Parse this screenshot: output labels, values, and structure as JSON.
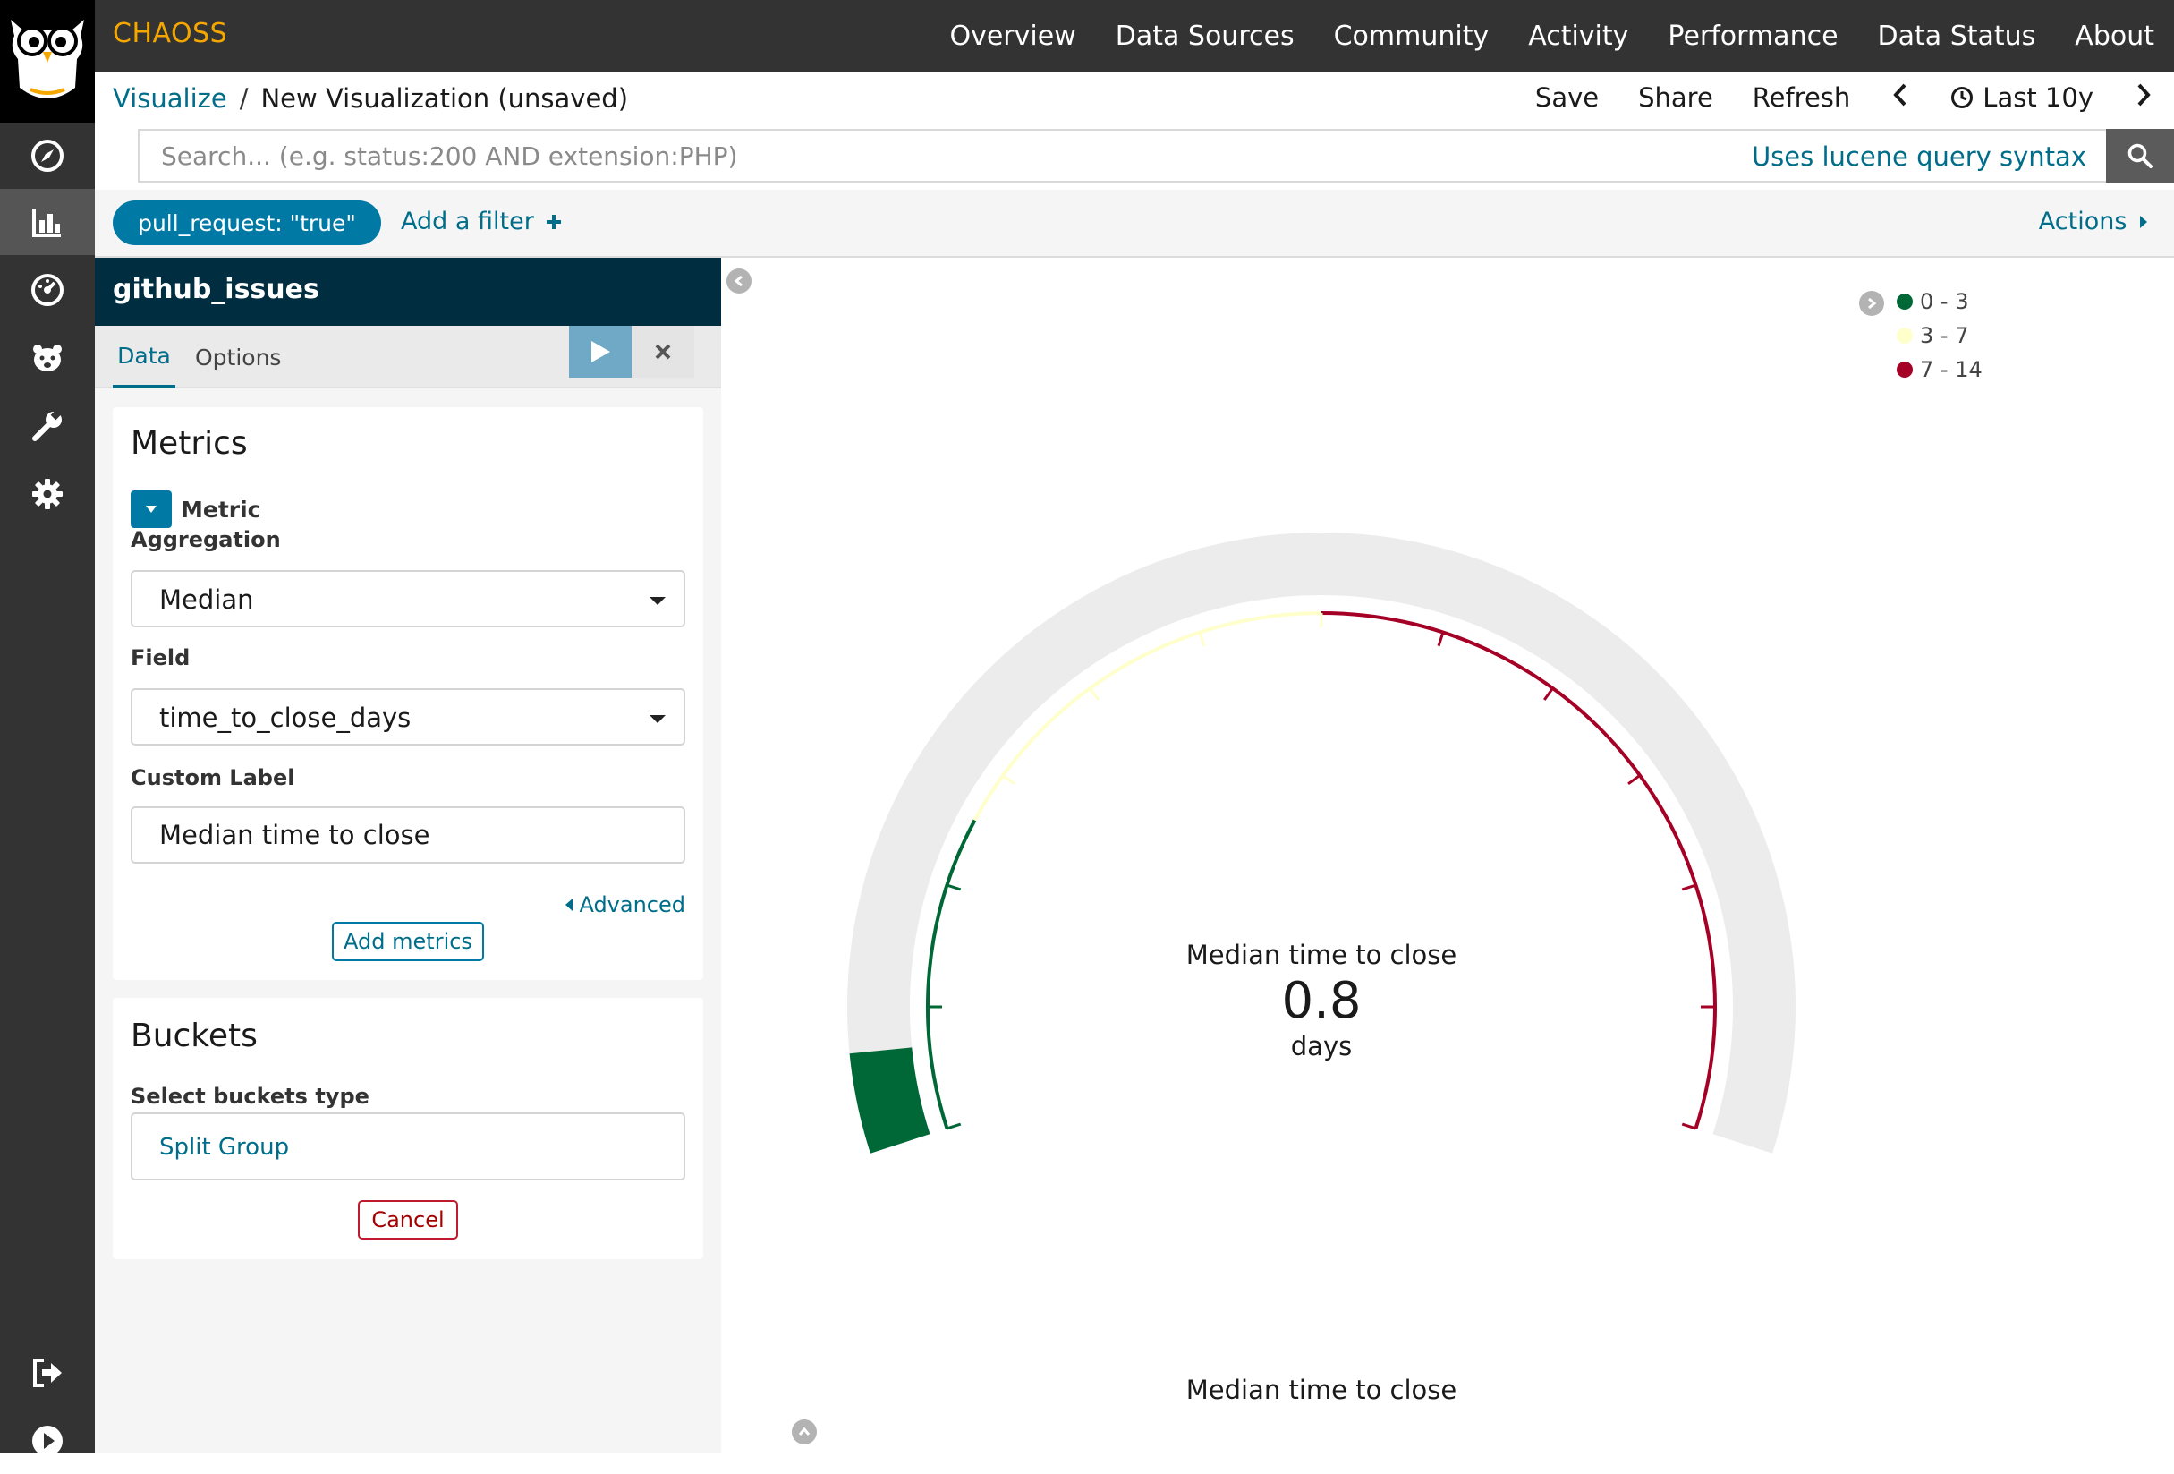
{
  "app": {
    "brand": "CHAOSS",
    "nav": [
      "Overview",
      "Data Sources",
      "Community",
      "Activity",
      "Performance",
      "Data Status",
      "About"
    ]
  },
  "breadcrumb": {
    "root": "Visualize",
    "separator": "/",
    "current": "New Visualization (unsaved)"
  },
  "top_actions": {
    "save": "Save",
    "share": "Share",
    "refresh": "Refresh",
    "time_range": "Last 10y"
  },
  "search": {
    "placeholder": "Search... (e.g. status:200 AND extension:PHP)",
    "syntax_link": "Uses lucene query syntax"
  },
  "filters": {
    "active": [
      "pull_request: \"true\""
    ],
    "add_label": "Add a filter",
    "actions_label": "Actions"
  },
  "editor": {
    "index": "github_issues",
    "tabs": [
      "Data",
      "Options"
    ],
    "metrics": {
      "title": "Metrics",
      "metric_label": "Metric",
      "aggregation_label": "Aggregation",
      "aggregation_value": "Median",
      "field_label": "Field",
      "field_value": "time_to_close_days",
      "custom_label_label": "Custom Label",
      "custom_label_value": "Median time to close",
      "advanced": "Advanced",
      "add_metrics": "Add metrics"
    },
    "buckets": {
      "title": "Buckets",
      "select_label": "Select buckets type",
      "split_group": "Split Group",
      "cancel": "Cancel"
    }
  },
  "gauge": {
    "label": "Median time to close",
    "value_text": "0.8",
    "unit": "days",
    "subtitle": "Median time to close"
  },
  "chart_data": {
    "type": "gauge",
    "value": 0.8,
    "min": 0,
    "max": 14,
    "ranges": [
      {
        "label": "0 - 3",
        "from": 0,
        "to": 3,
        "color": "#006837"
      },
      {
        "label": "3 - 7",
        "from": 3,
        "to": 7,
        "color": "#ffffcc"
      },
      {
        "label": "7 - 14",
        "from": 7,
        "to": 14,
        "color": "#a50026"
      }
    ],
    "title": "Median time to close",
    "unit": "days"
  },
  "colors": {
    "topbar": "#333333",
    "brand": "#f5a700",
    "link": "#006e8a",
    "primary": "#0079a5",
    "panel_header": "#002e40",
    "gauge_background": "#ececec"
  }
}
